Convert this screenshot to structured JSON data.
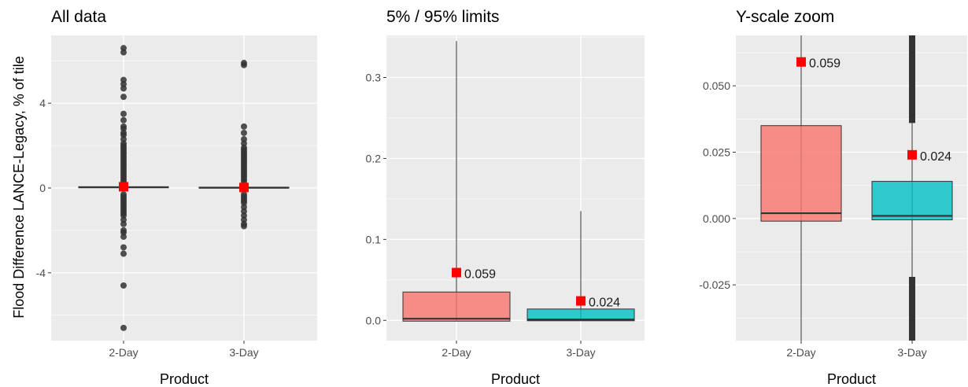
{
  "figure": {
    "ylabel": "Flood Difference LANCE-Legacy, % of tile",
    "xlabel": "Product"
  },
  "chart_data": [
    {
      "type": "boxplot",
      "title": "All data",
      "xlabel": "",
      "ylabel": "Flood Difference LANCE-Legacy, % of tile",
      "categories": [
        "2-Day",
        "3-Day"
      ],
      "ylim": [
        -7.2,
        7.2
      ],
      "yticks": [
        -4,
        0,
        4
      ],
      "ytick_labels": [
        "-4",
        "0",
        "4"
      ],
      "grid": true,
      "legend": "none",
      "boxes": [
        {
          "category": "2-Day",
          "q1": -0.001,
          "median": 0.002,
          "q3": 0.035,
          "mean": 0.059,
          "outliers": [
            6.6,
            6.4,
            5.1,
            4.9,
            4.7,
            4.3,
            3.5,
            3.2,
            2.9,
            2.8,
            2.6,
            2.5,
            2.3,
            2.1,
            2.0,
            1.9,
            1.8,
            1.7,
            1.6,
            1.5,
            1.4,
            1.3,
            1.2,
            1.1,
            1.0,
            0.9,
            0.8,
            0.7,
            0.6,
            0.5,
            0.4,
            0.3,
            -0.3,
            -0.4,
            -0.5,
            -0.6,
            -0.7,
            -0.8,
            -0.9,
            -1.0,
            -1.1,
            -1.2,
            -1.3,
            -1.5,
            -1.7,
            -2.0,
            -2.1,
            -2.3,
            -2.8,
            -3.1,
            -4.6,
            -6.6
          ]
        },
        {
          "category": "3-Day",
          "q1": -0.0005,
          "median": 0.001,
          "q3": 0.014,
          "mean": 0.024,
          "outliers": [
            5.9,
            5.8,
            2.9,
            2.6,
            2.3,
            2.1,
            1.9,
            1.8,
            1.7,
            1.6,
            1.5,
            1.4,
            1.3,
            1.2,
            1.1,
            1.0,
            0.9,
            0.8,
            0.7,
            0.6,
            0.5,
            0.4,
            0.3,
            -0.3,
            -0.4,
            -0.5,
            -0.6,
            -0.7,
            -0.9,
            -1.1,
            -1.3,
            -1.5,
            -1.7,
            -1.8
          ]
        }
      ]
    },
    {
      "type": "boxplot",
      "title": "5% / 95% limits",
      "xlabel": "Product",
      "ylabel": "",
      "categories": [
        "2-Day",
        "3-Day"
      ],
      "ylim": [
        -0.025,
        0.352
      ],
      "yticks": [
        0.0,
        0.1,
        0.2,
        0.3
      ],
      "ytick_labels": [
        "0.0",
        "0.1",
        "0.2",
        "0.3"
      ],
      "grid": true,
      "legend": "none",
      "boxes": [
        {
          "category": "2-Day",
          "q1": -0.001,
          "median": 0.002,
          "q3": 0.035,
          "whisker_low": -0.001,
          "whisker_high": 0.345,
          "mean": 0.059,
          "mean_label": "0.059",
          "color": "#F8766D"
        },
        {
          "category": "3-Day",
          "q1": -0.0005,
          "median": 0.001,
          "q3": 0.014,
          "whisker_low": -0.0005,
          "whisker_high": 0.135,
          "mean": 0.024,
          "mean_label": "0.024",
          "color": "#00BFC4"
        }
      ]
    },
    {
      "type": "boxplot",
      "title": "Y-scale zoom",
      "xlabel": "Product",
      "ylabel": "",
      "categories": [
        "2-Day",
        "3-Day"
      ],
      "ylim": [
        -0.046,
        0.069
      ],
      "yticks": [
        -0.025,
        0.0,
        0.025,
        0.05
      ],
      "ytick_labels": [
        "-0.025",
        "0.000",
        "0.025",
        "0.050"
      ],
      "grid": true,
      "legend": "none",
      "boxes": [
        {
          "category": "2-Day",
          "q1": -0.001,
          "median": 0.002,
          "q3": 0.035,
          "whisker_low": -0.046,
          "whisker_high": 0.069,
          "mean": 0.059,
          "mean_label": "0.059",
          "color": "#F8766D",
          "outliers_low_from": null,
          "outliers_high_from": null
        },
        {
          "category": "3-Day",
          "q1": -0.0005,
          "median": 0.001,
          "q3": 0.014,
          "whisker_low": -0.022,
          "whisker_high": 0.036,
          "mean": 0.024,
          "mean_label": "0.024",
          "color": "#00BFC4",
          "outliers_low_from": -0.022,
          "outliers_high_from": 0.036
        }
      ]
    }
  ]
}
